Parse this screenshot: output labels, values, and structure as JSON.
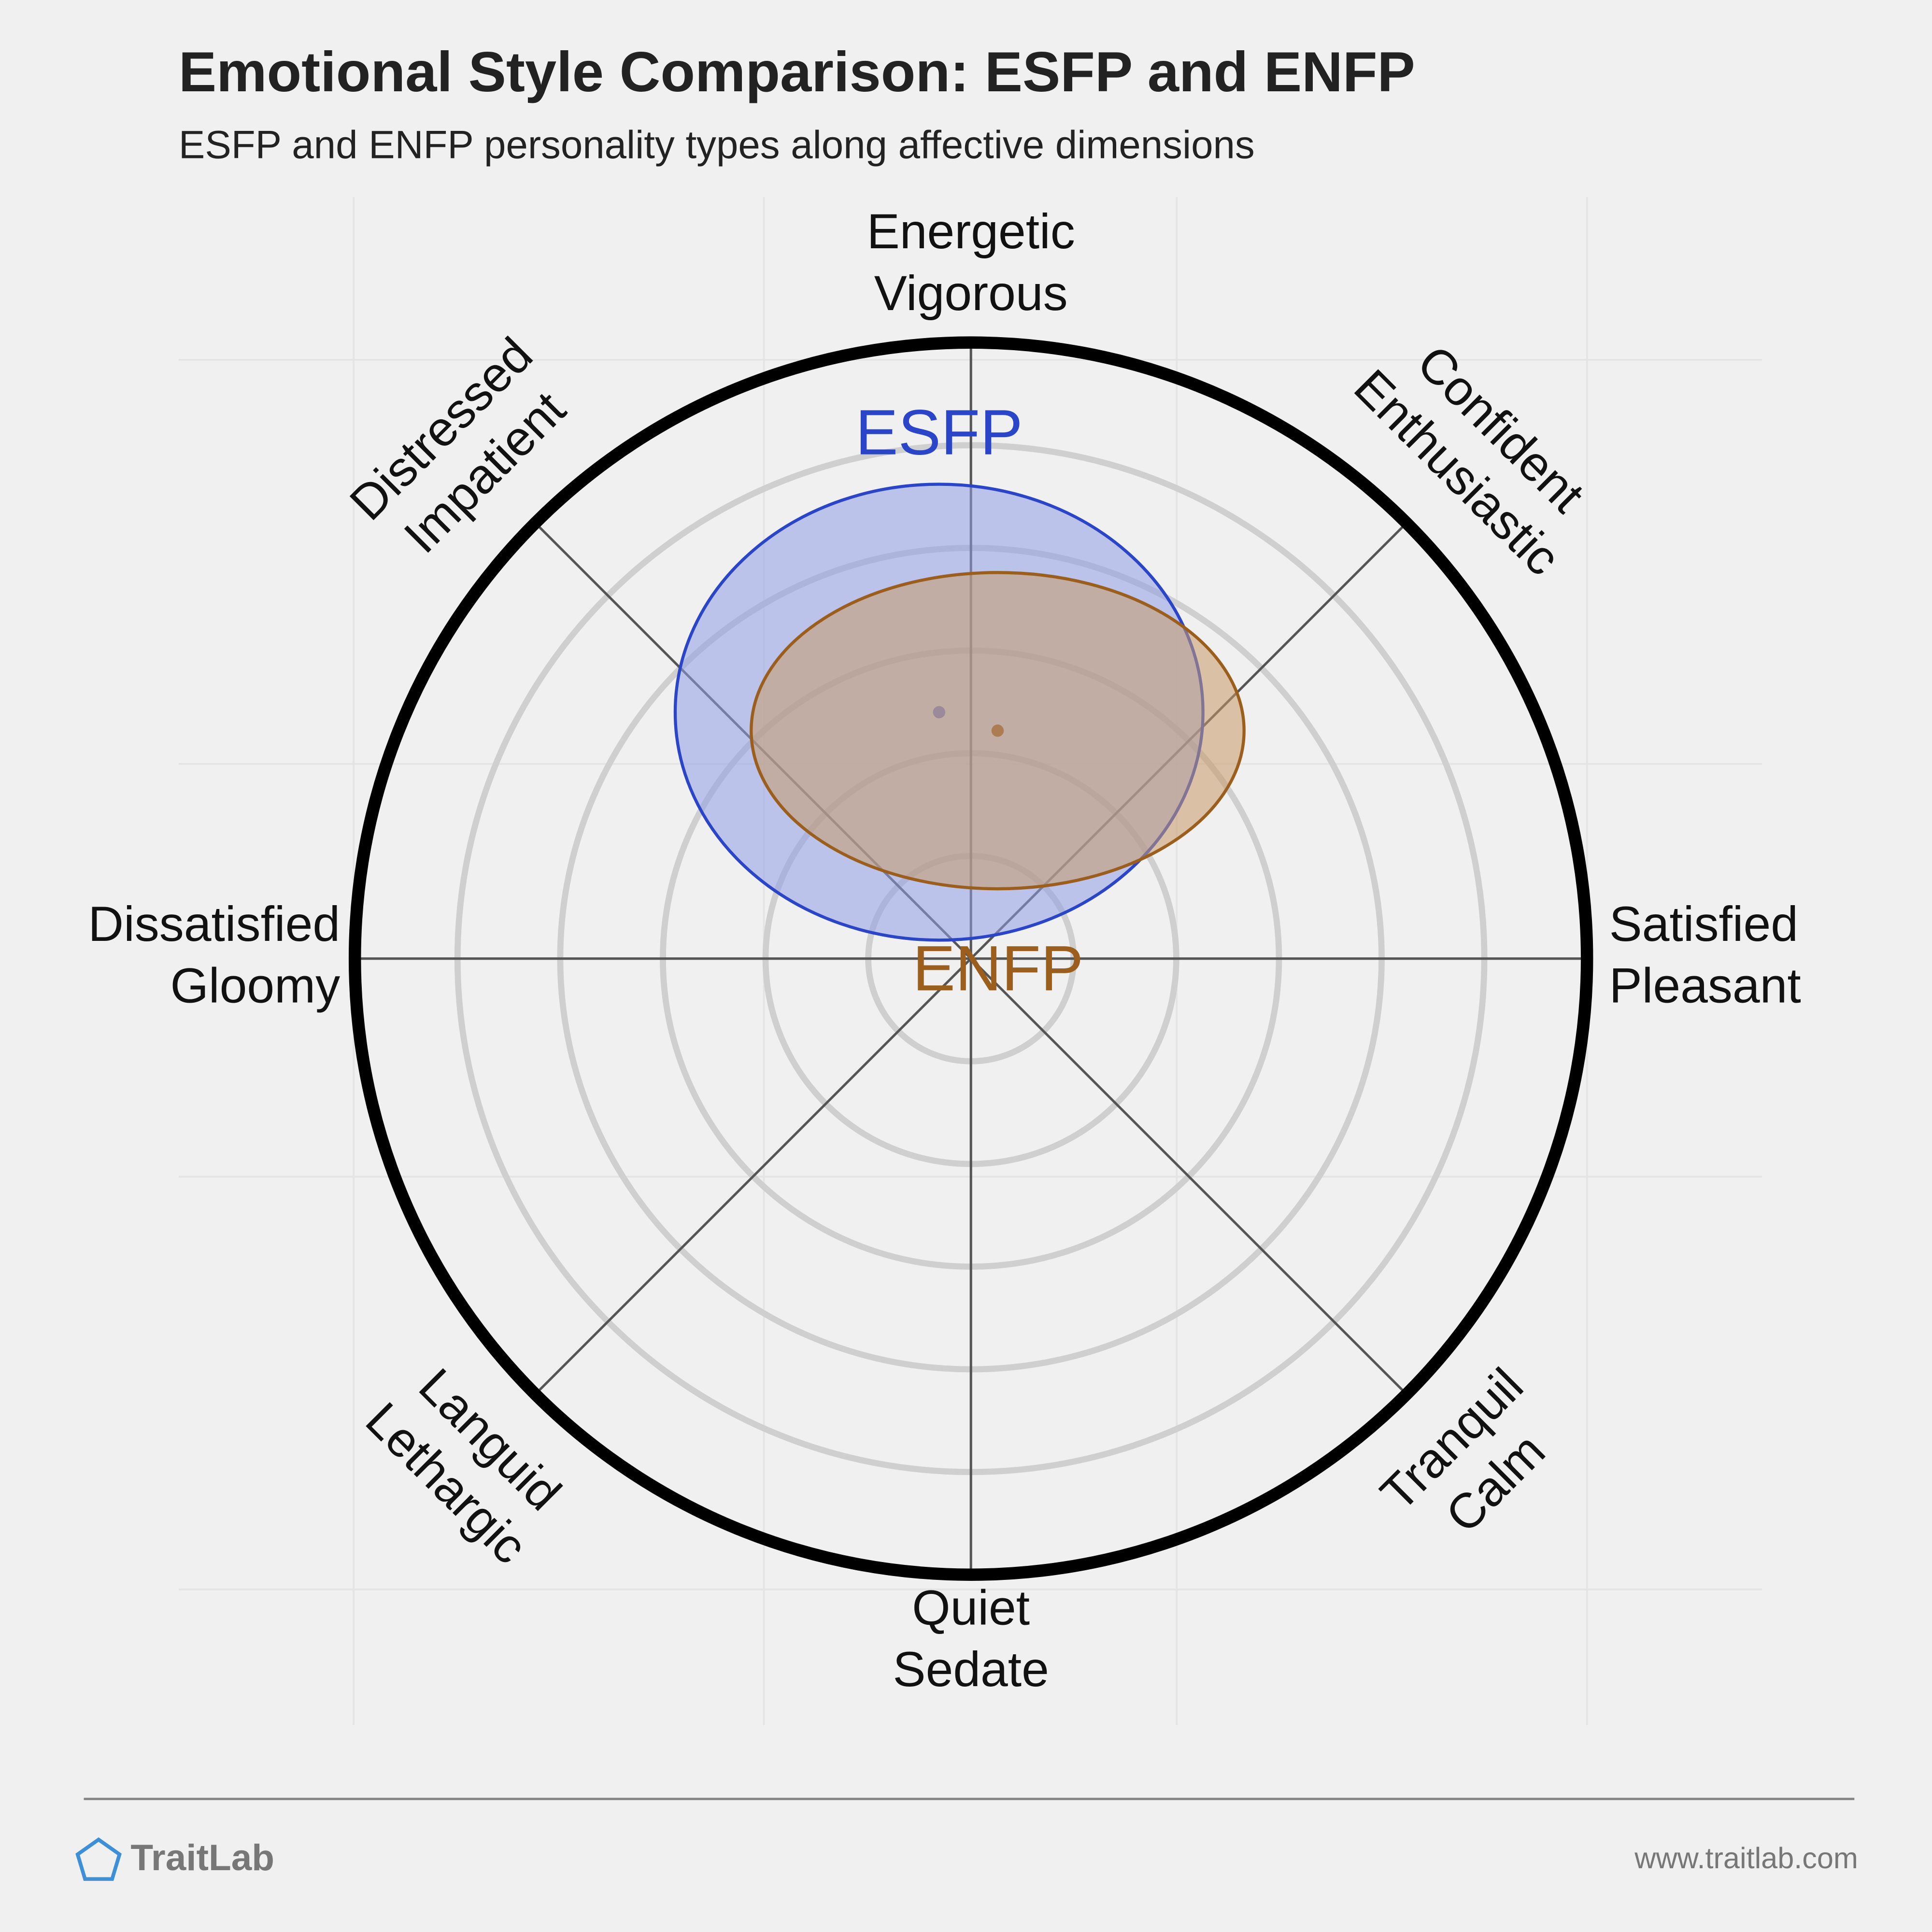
{
  "chart_data": {
    "type": "ellipse",
    "title": "Emotional Style Comparison: ESFP and ENFP",
    "subtitle": "ESFP and ENFP personality types along affective dimensions",
    "axis_labels": [
      [
        "Energetic",
        "Vigorous"
      ],
      [
        "Confident",
        "Enthusiastic"
      ],
      [
        "Satisfied",
        "Pleasant"
      ],
      [
        "Tranquil",
        "Calm"
      ],
      [
        "Quiet",
        "Sedate"
      ],
      [
        "Languid",
        "Lethargic"
      ],
      [
        "Dissatisfied",
        "Gloomy"
      ],
      [
        "Distressed",
        "Impatient"
      ]
    ],
    "xlim": [
      -6,
      6
    ],
    "ylim": [
      -6,
      6
    ],
    "rticks": [
      1,
      2,
      3,
      4,
      5
    ],
    "series": [
      {
        "name": "ESFP",
        "color": "#2a45c8",
        "fill": "#8f9fe6",
        "cx": -0.31,
        "cy": 2.4,
        "rx": 2.57,
        "ry": 2.22
      },
      {
        "name": "ENFP",
        "color": "#9c5e1c",
        "fill": "#c89a6a",
        "cx": 0.26,
        "cy": 2.22,
        "rx": 2.4,
        "ry": 1.54
      }
    ]
  },
  "footer": {
    "brand": "TraitLab",
    "url": "www.traitlab.com"
  }
}
